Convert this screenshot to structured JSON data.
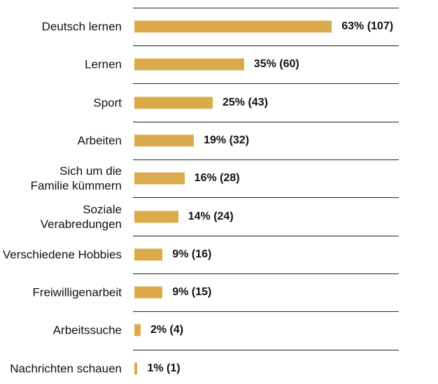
{
  "chart_data": {
    "type": "bar",
    "orientation": "horizontal",
    "categories": [
      "Deutsch lernen",
      "Lernen",
      "Sport",
      "Arbeiten",
      "Sich um die Familie kümmern",
      "Soziale Verabredungen",
      "Verschiedene Hobbies",
      "Freiwilligenarbeit",
      "Arbeitssuche",
      "Nachrichten schauen"
    ],
    "values": [
      63,
      35,
      25,
      19,
      16,
      14,
      9,
      9,
      2,
      1
    ],
    "value_labels": [
      "63% (107)",
      "35% (60)",
      "25% (43)",
      "19% (32)",
      "16% (28)",
      "14% (24)",
      "9% (16)",
      "9% (15)",
      "2% (4)",
      "1% (1)"
    ],
    "color": "#dbab4b"
  }
}
